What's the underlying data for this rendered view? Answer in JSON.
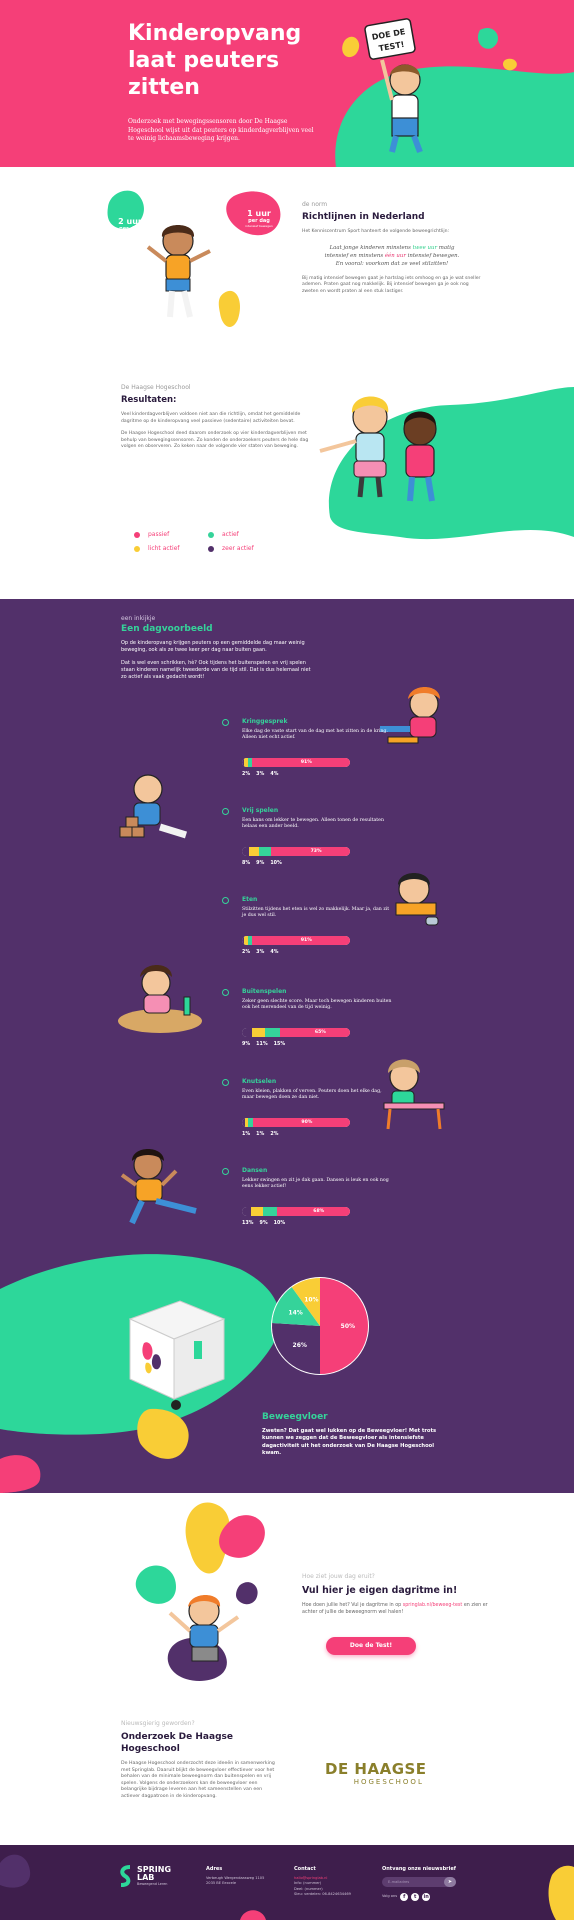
{
  "colors": {
    "pink": "#f53f78",
    "green": "#35d39a",
    "yellow": "#f9cd36",
    "purple": "#52306a",
    "dark_purple": "#3e1e4c"
  },
  "hero": {
    "title_lines": [
      "Kinderopvang",
      "laat peuters",
      "zitten"
    ],
    "subtitle": "Onderzoek met bewegingssensoren door De Haagse Hogeschool wijst uit dat peuters op kinderdagverblijven veel te weinig lichaamsbeweging krijgen.",
    "sign_line1": "DOE DE",
    "sign_line2": "TEST!"
  },
  "guidelines": {
    "bubble_green_big": "2 uur",
    "bubble_green_small": "per dag",
    "bubble_green_note": "matig intensief bewegen",
    "bubble_pink_big": "1 uur",
    "bubble_pink_small": "per dag",
    "bubble_pink_note": "intensief bewegen",
    "label": "de norm",
    "heading": "Richtlijnen in Nederland",
    "intro": "Het Kenniscentrum Sport hanteert de volgende beweegrichtlijn:",
    "q1a": "Laat jonge kinderen minstens ",
    "q1b": "twee uur",
    "q1c": " matig",
    "q2a": "intensief en minstens ",
    "q2b": "één uur",
    "q2c": " intensief bewegen.",
    "q3": "En vooral: voorkom dat ze veel stilzitten!",
    "body": "Bij matig intensief bewegen gaat je hartslag iets omhoog en ga je wat sneller ademen. Praten gaat nog makkelijk. Bij intensief bewegen ga je ook nog zweten en wordt praten al een stuk lastiger."
  },
  "results": {
    "label": "De Haagse Hogeschool",
    "heading": "Resultaten:",
    "p1": "Veel kinderdagverblijven voldoen niet aan die richtlijn, omdat het gemiddelde dagritme op de kinderopvang veel passieve (sedentaire) activiteiten bevat.",
    "p2": "De Haagse Hogeschool deed daarom onderzoek op vier kinderdagverblijven met behulp van bewegingssensoren. Zo konden de onderzoekers peuters de hele dag volgen en observeren. Zo keken naar de volgende vier staten van beweging.",
    "legend": [
      {
        "label": "passief",
        "color": "#f53f78"
      },
      {
        "label": "actief",
        "color": "#35d39a"
      },
      {
        "label": "licht actief",
        "color": "#f9cd36"
      },
      {
        "label": "zeer actief",
        "color": "#52306a"
      }
    ]
  },
  "day": {
    "label": "een inkijkje",
    "heading": "Een dagvoorbeeld",
    "p1": "Op de kinderopvang krijgen peuters op een gemiddelde dag maar weinig beweging, ook als ze twee keer per dag naar buiten gaan.",
    "p2": "Dat is wel even schrikken, hè? Ook tijdens het buitenspelen en vrij spelen staan kinderen namelijk tweederde van de tijd stil. Dat is dus helemaal niet zo actief als vaak gedacht wordt!",
    "activities": [
      {
        "name": "Kringgesprek",
        "desc": "Elke dag de vaste start van de dag met het zitten in de kring. Alleen niet echt actief.",
        "passive": 91,
        "pct": "91%",
        "mins": [
          "2%",
          "3%",
          "4%"
        ]
      },
      {
        "name": "Vrij spelen",
        "desc": "Een kans om lekker te bewegen. Alleen tonen de resultaten helaas een ander beeld.",
        "passive": 73,
        "pct": "73%",
        "mins": [
          "8%",
          "9%",
          "10%"
        ]
      },
      {
        "name": "Eten",
        "desc": "Stilzitten tijdens het eten is wel zo makkelijk. Maar ja, dan zit je dus wel stil.",
        "passive": 91,
        "pct": "91%",
        "mins": [
          "2%",
          "3%",
          "4%"
        ]
      },
      {
        "name": "Buitenspelen",
        "desc": "Zeker geen slechte score. Maar toch bewegen kinderen buiten ook het merendeel van de tijd weinig.",
        "passive": 65,
        "pct": "65%",
        "mins": [
          "9%",
          "11%",
          "15%"
        ]
      },
      {
        "name": "Knutselen",
        "desc": "Even kleien, plakken of verven. Peuters doen het elke dag, maar bewegen doen ze dan niet.",
        "passive": 90,
        "pct": "90%",
        "mins": [
          "1%",
          "1%",
          "2%"
        ]
      },
      {
        "name": "Dansen",
        "desc": "Lekker swingen en zit je dak gaan. Dansen is leuk en ook nog eens lekker actief!",
        "passive": 68,
        "pct": "68%",
        "mins": [
          "13%",
          "9%",
          "10%"
        ]
      }
    ]
  },
  "chart_data": {
    "type": "pie",
    "categories": [
      "passief",
      "zeer actief",
      "actief",
      "licht actief"
    ],
    "values": [
      50,
      26,
      14,
      10
    ],
    "labels": [
      "50%",
      "26%",
      "14%",
      "10%"
    ]
  },
  "pie_section": {
    "heading": "Beweegvloer",
    "body": "Zweten? Dat gaat wel lukken op de Beweegvloer! Met trots kunnen we zeggen dat de Beweegvloer als intensiefste dagactiviteit uit het onderzoek van De Haagse Hogeschool kwam.",
    "cube_text": "SPRINGLAB"
  },
  "cta": {
    "label": "Hoe ziet jouw dag eruit?",
    "heading": "Vul hier je eigen dagritme in!",
    "text_a": "Hoe doen jullie het? Vul je dagritme in op ",
    "text_link": "springlab.nl/beweeg-test",
    "text_b": " en zien er achter of jullie de beweegnorm wel halen!",
    "button": "Doe de Test!"
  },
  "research": {
    "label": "Nieuwsgierig geworden?",
    "heading": "Onderzoek De Haagse Hogeschool",
    "body": "De Haagse Hogeschool onderzocht deze ideeën in samenwerking met Springlab. Daaruit blijkt de beweegvloer effectiever voor het behalen van de minimale beweegnorm dan buitenspelen en vrij spelen. Volgens de onderzoekers kan de beweegvloer een belangrijke bijdrage leveren aan het sameenstellen van een actiever dagpatroon in de kinderopvang.",
    "logo_line1": "DE HAAGSE",
    "logo_line2": "HOGESCHOOL"
  },
  "footer": {
    "brand_line1": "SPRING",
    "brand_line2": "LAB",
    "brand_tag": "Beweegend Leren",
    "adres_h": "Adres",
    "adres": [
      "Verbeugh Wergendaasweg 1105",
      "2035 BE Eexcele"
    ],
    "contact_h": "Contact",
    "contact": [
      "hallo@springlab.nl",
      "Info: (nummer)",
      "Deel: (nummer)",
      "Sleu: verdelen: 06-8424634469"
    ],
    "nieuwsbrief_h": "Ontvang onze nieuwsbrief",
    "nieuwsbrief_placeholder": "E-mailadres",
    "volg_ons": "Volg ons"
  }
}
